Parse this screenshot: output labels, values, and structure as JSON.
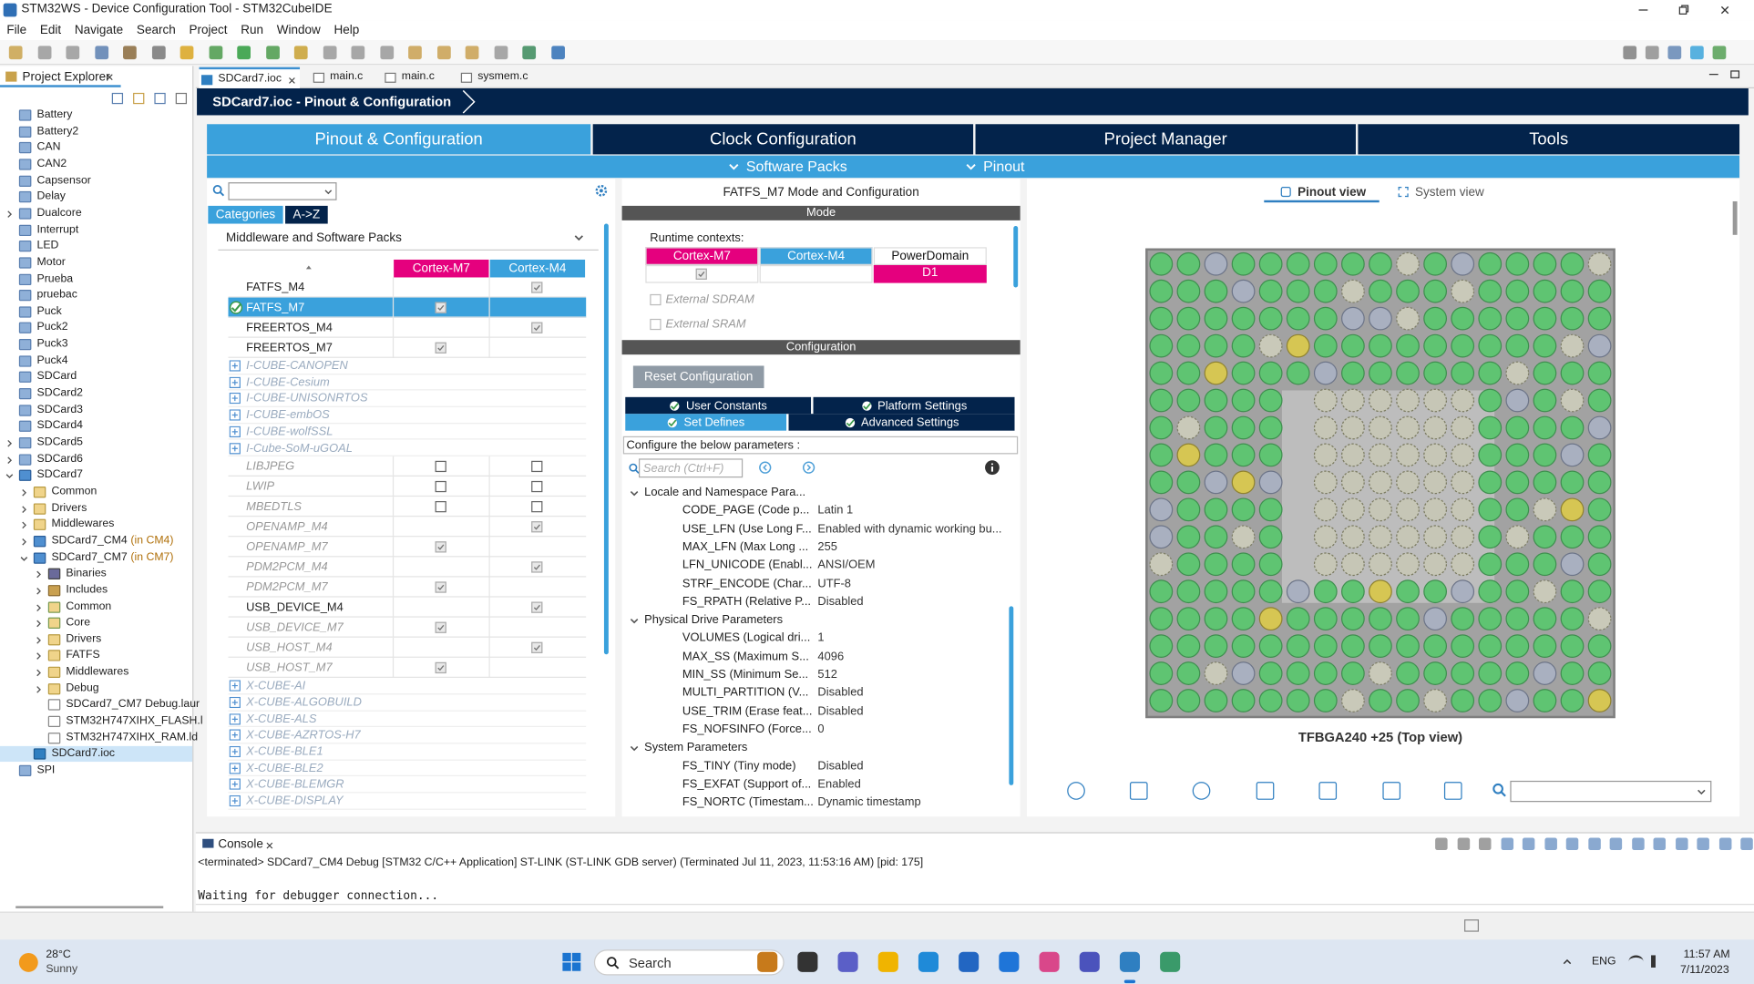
{
  "window_title": "STM32WS - Device Configuration Tool - STM32CubeIDE",
  "menu": [
    "File",
    "Edit",
    "Navigate",
    "Search",
    "Project",
    "Run",
    "Window",
    "Help"
  ],
  "project_explorer": {
    "title": "Project Explorer",
    "tree": [
      {
        "label": "Battery",
        "icon": "project"
      },
      {
        "label": "Battery2",
        "icon": "project"
      },
      {
        "label": "CAN",
        "icon": "project"
      },
      {
        "label": "CAN2",
        "icon": "project"
      },
      {
        "label": "Capsensor",
        "icon": "project"
      },
      {
        "label": "Delay",
        "icon": "project"
      },
      {
        "label": "Dualcore",
        "icon": "project",
        "collapsed": true
      },
      {
        "label": "Interrupt",
        "icon": "project"
      },
      {
        "label": "LED",
        "icon": "project"
      },
      {
        "label": "Motor",
        "icon": "project"
      },
      {
        "label": "Prueba",
        "icon": "project"
      },
      {
        "label": "pruebac",
        "icon": "project"
      },
      {
        "label": "Puck",
        "icon": "project"
      },
      {
        "label": "Puck2",
        "icon": "project"
      },
      {
        "label": "Puck3",
        "icon": "project"
      },
      {
        "label": "Puck4",
        "icon": "project"
      },
      {
        "label": "SDCard",
        "icon": "project"
      },
      {
        "label": "SDCard2",
        "icon": "project"
      },
      {
        "label": "SDCard3",
        "icon": "project"
      },
      {
        "label": "SDCard4",
        "icon": "project"
      },
      {
        "label": "SDCard5",
        "icon": "project",
        "collapsed": true
      },
      {
        "label": "SDCard6",
        "icon": "project",
        "collapsed": true
      },
      {
        "label": "SDCard7",
        "icon": "ide",
        "children": [
          {
            "label": "Common",
            "icon": "folder",
            "collapsed": true
          },
          {
            "label": "Drivers",
            "icon": "folder",
            "collapsed": true
          },
          {
            "label": "Middlewares",
            "icon": "folder",
            "collapsed": true
          },
          {
            "label": "SDCard7_CM4",
            "note": "(in CM4)",
            "icon": "ide",
            "collapsed": true
          },
          {
            "label": "SDCard7_CM7",
            "note": "(in CM7)",
            "icon": "ide",
            "children": [
              {
                "label": "Binaries",
                "icon": "bin",
                "collapsed": true
              },
              {
                "label": "Includes",
                "icon": "inc",
                "collapsed": true
              },
              {
                "label": "Common",
                "icon": "src",
                "collapsed": true
              },
              {
                "label": "Core",
                "icon": "src",
                "collapsed": true
              },
              {
                "label": "Drivers",
                "icon": "folder",
                "collapsed": true
              },
              {
                "label": "FATFS",
                "icon": "folder",
                "collapsed": true
              },
              {
                "label": "Middlewares",
                "icon": "folder",
                "collapsed": true
              },
              {
                "label": "Debug",
                "icon": "folder",
                "collapsed": true
              },
              {
                "label": "SDCard7_CM7 Debug.laur",
                "icon": "file"
              },
              {
                "label": "STM32H747XIHX_FLASH.l",
                "icon": "file"
              },
              {
                "label": "STM32H747XIHX_RAM.ld",
                "icon": "file"
              }
            ]
          },
          {
            "label": "SDCard7.ioc",
            "icon": "mx",
            "selected": true
          }
        ]
      },
      {
        "label": "SPI",
        "icon": "project"
      }
    ]
  },
  "editor_tabs": [
    "SDCard7.ioc",
    "main.c",
    "main.c",
    "sysmem.c"
  ],
  "breadcrumb": "SDCard7.ioc - Pinout & Configuration",
  "main_tabs": [
    "Pinout & Configuration",
    "Clock Configuration",
    "Project Manager",
    "Tools"
  ],
  "sub_tabs": [
    "Software Packs",
    "Pinout"
  ],
  "components": {
    "tabs": [
      "Categories",
      "A->Z"
    ],
    "section": "Middleware and Software Packs",
    "columns": [
      "Cortex-M7",
      "Cortex-M4"
    ],
    "rows": [
      {
        "name": "FATFS_M4",
        "kind": "component",
        "active": true,
        "m7": null,
        "m4": true
      },
      {
        "name": "FATFS_M7",
        "kind": "component",
        "active": true,
        "selected": true,
        "m7": true,
        "m4": null
      },
      {
        "name": "FREERTOS_M4",
        "kind": "component",
        "active": true,
        "m7": null,
        "m4": true
      },
      {
        "name": "FREERTOS_M7",
        "kind": "component",
        "active": true,
        "m7": true,
        "m4": null
      },
      {
        "name": "I-CUBE-CANOPEN",
        "kind": "pack"
      },
      {
        "name": "I-CUBE-Cesium",
        "kind": "pack"
      },
      {
        "name": "I-CUBE-UNISONRTOS",
        "kind": "pack"
      },
      {
        "name": "I-CUBE-embOS",
        "kind": "pack"
      },
      {
        "name": "I-CUBE-wolfSSL",
        "kind": "pack"
      },
      {
        "name": "I-Cube-SoM-uGOAL",
        "kind": "pack"
      },
      {
        "name": "LIBJPEG",
        "kind": "component",
        "active": false,
        "m7": false,
        "m4": false
      },
      {
        "name": "LWIP",
        "kind": "component",
        "active": false,
        "m7": false,
        "m4": false
      },
      {
        "name": "MBEDTLS",
        "kind": "component",
        "active": false,
        "m7": false,
        "m4": false
      },
      {
        "name": "OPENAMP_M4",
        "kind": "component",
        "active": false,
        "m7": null,
        "m4": true
      },
      {
        "name": "OPENAMP_M7",
        "kind": "component",
        "active": false,
        "m7": true,
        "m4": null
      },
      {
        "name": "PDM2PCM_M4",
        "kind": "component",
        "active": false,
        "m7": null,
        "m4": true
      },
      {
        "name": "PDM2PCM_M7",
        "kind": "component",
        "active": false,
        "m7": true,
        "m4": null
      },
      {
        "name": "USB_DEVICE_M4",
        "kind": "component",
        "active": true,
        "m7": null,
        "m4": true
      },
      {
        "name": "USB_DEVICE_M7",
        "kind": "component",
        "active": false,
        "m7": true,
        "m4": null
      },
      {
        "name": "USB_HOST_M4",
        "kind": "component",
        "active": false,
        "m7": null,
        "m4": true
      },
      {
        "name": "USB_HOST_M7",
        "kind": "component",
        "active": false,
        "m7": true,
        "m4": null
      },
      {
        "name": "X-CUBE-AI",
        "kind": "pack"
      },
      {
        "name": "X-CUBE-ALGOBUILD",
        "kind": "pack"
      },
      {
        "name": "X-CUBE-ALS",
        "kind": "pack"
      },
      {
        "name": "X-CUBE-AZRTOS-H7",
        "kind": "pack"
      },
      {
        "name": "X-CUBE-BLE1",
        "kind": "pack"
      },
      {
        "name": "X-CUBE-BLE2",
        "kind": "pack"
      },
      {
        "name": "X-CUBE-BLEMGR",
        "kind": "pack"
      },
      {
        "name": "X-CUBE-DISPLAY",
        "kind": "pack"
      }
    ]
  },
  "config": {
    "title": "FATFS_M7 Mode and Configuration",
    "mode_header": "Mode",
    "runtime_label": "Runtime contexts:",
    "runtime_columns": [
      "Cortex-M7",
      "Cortex-M4",
      "PowerDomain"
    ],
    "runtime_values": {
      "m7": true,
      "power_domain": "D1"
    },
    "options": [
      "External SDRAM",
      "External SRAM"
    ],
    "config_header": "Configuration",
    "reset_button": "Reset Configuration",
    "tabs": [
      "User Constants",
      "Platform Settings",
      "Set Defines",
      "Advanced Settings"
    ],
    "active_tab": 2,
    "hint": "Configure the below parameters :",
    "search_placeholder": "Search (Ctrl+F)",
    "groups": [
      {
        "name": "Locale and Namespace Para...",
        "params": [
          {
            "name": "CODE_PAGE (Code p...",
            "value": "Latin 1"
          },
          {
            "name": "USE_LFN (Use Long F...",
            "value": "Enabled with dynamic working bu..."
          },
          {
            "name": "MAX_LFN (Max Long ...",
            "value": "255"
          },
          {
            "name": "LFN_UNICODE (Enabl...",
            "value": "ANSI/OEM"
          },
          {
            "name": "STRF_ENCODE (Char...",
            "value": "UTF-8"
          },
          {
            "name": "FS_RPATH (Relative P...",
            "value": "Disabled"
          }
        ]
      },
      {
        "name": "Physical Drive Parameters",
        "params": [
          {
            "name": "VOLUMES (Logical dri...",
            "value": "1"
          },
          {
            "name": "MAX_SS (Maximum S...",
            "value": "4096"
          },
          {
            "name": "MIN_SS (Minimum Se...",
            "value": "512"
          },
          {
            "name": "MULTI_PARTITION (V...",
            "value": "Disabled"
          },
          {
            "name": "USE_TRIM (Erase feat...",
            "value": "Disabled"
          },
          {
            "name": "FS_NOFSINFO (Force...",
            "value": "0"
          }
        ]
      },
      {
        "name": "System Parameters",
        "params": [
          {
            "name": "FS_TINY (Tiny mode)",
            "value": "Disabled"
          },
          {
            "name": "FS_EXFAT (Support of...",
            "value": "Enabled"
          },
          {
            "name": "FS_NORTC (Timestam...",
            "value": "Dynamic timestamp"
          }
        ]
      }
    ]
  },
  "pinout": {
    "views": [
      "Pinout view",
      "System view"
    ],
    "package": "TFBGA240 +25 (Top view)"
  },
  "console": {
    "title": "Console",
    "status": "<terminated> SDCard7_CM4 Debug [STM32 C/C++ Application] ST-LINK (ST-LINK GDB server) (Terminated Jul 11, 2023, 11:53:16 AM) [pid: 175]",
    "output": "Waiting for debugger connection..."
  },
  "taskbar": {
    "temperature": "28°C",
    "weather": "Sunny",
    "search": "Search",
    "language": "ENG",
    "time": "11:57 AM",
    "date": "7/11/2023"
  }
}
